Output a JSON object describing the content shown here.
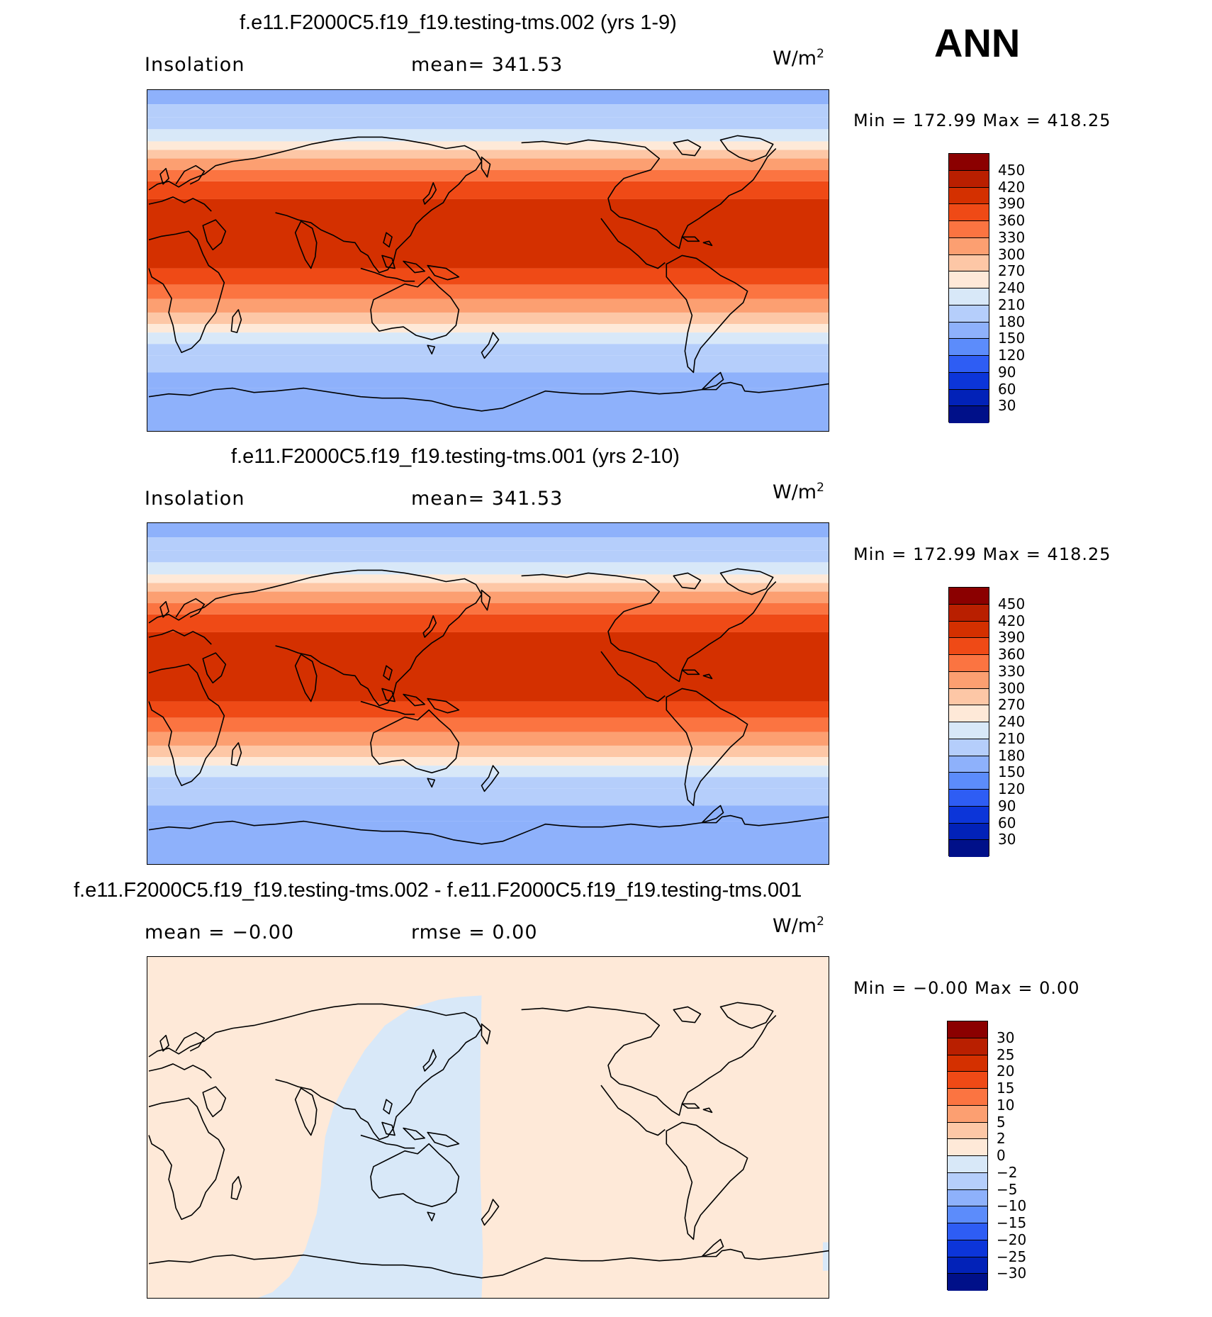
{
  "season": "ANN",
  "units_base": "W/m",
  "units_exp": "2",
  "panels": [
    {
      "title": "f.e11.F2000C5.f19_f19.testing-tms.002 (yrs 1-9)",
      "left_label": "Insolation",
      "center_label": "mean=  341.53",
      "min_max": "Min  =  172.99  Max  =  418.25",
      "colorbar_ticks": [
        "450",
        "420",
        "390",
        "360",
        "330",
        "300",
        "270",
        "240",
        "210",
        "180",
        "150",
        "120",
        "90",
        "60",
        "30"
      ]
    },
    {
      "title": "f.e11.F2000C5.f19_f19.testing-tms.001 (yrs 2-10)",
      "left_label": "Insolation",
      "center_label": "mean=  341.53",
      "min_max": "Min  =  172.99  Max  =  418.25",
      "colorbar_ticks": [
        "450",
        "420",
        "390",
        "360",
        "330",
        "300",
        "270",
        "240",
        "210",
        "180",
        "150",
        "120",
        "90",
        "60",
        "30"
      ]
    },
    {
      "title": "f.e11.F2000C5.f19_f19.testing-tms.002 - f.e11.F2000C5.f19_f19.testing-tms.001",
      "left_label": "mean  =    −0.00",
      "center_label": "rmse  =     0.00",
      "min_max": "Min  =    −0.00  Max  =     0.00",
      "colorbar_ticks": [
        "30",
        "25",
        "20",
        "15",
        "10",
        "5",
        "2",
        "0",
        "−2",
        "−5",
        "−10",
        "−15",
        "−20",
        "−25",
        "−30"
      ]
    }
  ],
  "colors": {
    "palette": [
      "#8b0000",
      "#b91f00",
      "#d43000",
      "#ef4a16",
      "#fb7441",
      "#fc9f71",
      "#fdc7a6",
      "#fee9d8",
      "#d8e8f8",
      "#b5cefb",
      "#8eb1fb",
      "#5c8cfb",
      "#2e5df4",
      "#0c35d9",
      "#0222b8",
      "#001089"
    ],
    "ocean_outline": "#000000"
  }
}
